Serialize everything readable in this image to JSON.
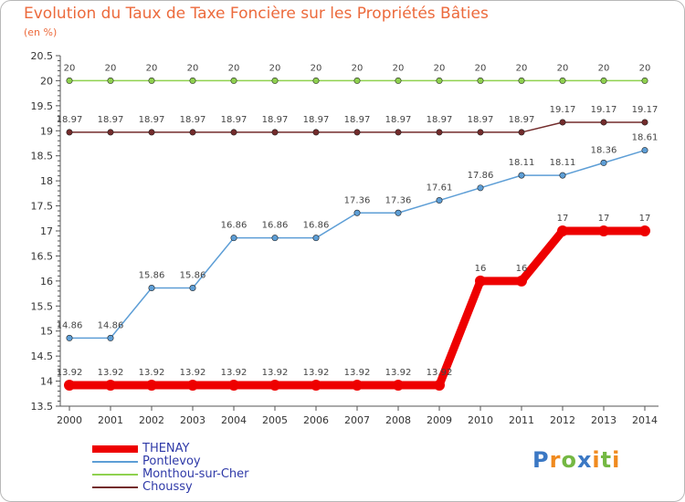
{
  "chart_data": {
    "type": "line",
    "title": "Evolution du Taux de Taxe Foncière sur les Propriétés Bâties",
    "ylabel": "(en %)",
    "xlabel": "",
    "ylim": [
      13.5,
      20.5
    ],
    "grid": false,
    "yticks": [
      "13.5",
      "14",
      "14.5",
      "15",
      "15.5",
      "16",
      "16.5",
      "17",
      "17.5",
      "18",
      "18.5",
      "19",
      "19.5",
      "20",
      "20.5"
    ],
    "categories": [
      "2000",
      "2001",
      "2002",
      "2003",
      "2004",
      "2005",
      "2006",
      "2007",
      "2008",
      "2009",
      "2010",
      "2011",
      "2012",
      "2013",
      "2014"
    ],
    "series": [
      {
        "name": "Monthou-sur-Cher",
        "color": "#8fd14f",
        "emphasis": false,
        "values": [
          20,
          20,
          20,
          20,
          20,
          20,
          20,
          20,
          20,
          20,
          20,
          20,
          20,
          20,
          20
        ],
        "labels": [
          "20",
          "20",
          "20",
          "20",
          "20",
          "20",
          "20",
          "20",
          "20",
          "20",
          "20",
          "20",
          "20",
          "20",
          "20"
        ]
      },
      {
        "name": "Choussy",
        "color": "#732c2c",
        "emphasis": false,
        "values": [
          18.97,
          18.97,
          18.97,
          18.97,
          18.97,
          18.97,
          18.97,
          18.97,
          18.97,
          18.97,
          18.97,
          18.97,
          19.17,
          19.17,
          19.17
        ],
        "labels": [
          "18.97",
          "18.97",
          "18.97",
          "18.97",
          "18.97",
          "18.97",
          "18.97",
          "18.97",
          "18.97",
          "18.97",
          "18.97",
          "18.97",
          "19.17",
          "19.17",
          "19.17"
        ]
      },
      {
        "name": "Pontlevoy",
        "color": "#5d9ed6",
        "emphasis": false,
        "values": [
          14.86,
          14.86,
          15.86,
          15.86,
          16.86,
          16.86,
          16.86,
          17.36,
          17.36,
          17.61,
          17.86,
          18.11,
          18.11,
          18.36,
          18.61
        ],
        "labels": [
          "14.86",
          "14.86",
          "15.86",
          "15.86",
          "16.86",
          "16.86",
          "16.86",
          "17.36",
          "17.36",
          "17.61",
          "17.86",
          "18.11",
          "18.11",
          "18.36",
          "18.61"
        ]
      },
      {
        "name": "THENAY",
        "color": "#ee0000",
        "emphasis": true,
        "values": [
          13.92,
          13.92,
          13.92,
          13.92,
          13.92,
          13.92,
          13.92,
          13.92,
          13.92,
          13.92,
          16,
          16,
          17,
          17,
          17
        ],
        "labels": [
          "13.92",
          "13.92",
          "13.92",
          "13.92",
          "13.92",
          "13.92",
          "13.92",
          "13.92",
          "13.92",
          "13.92",
          "16",
          "16",
          "17",
          "17",
          "17"
        ]
      }
    ],
    "legend": [
      {
        "name": "THENAY",
        "color": "#ee0000",
        "emphasis": true
      },
      {
        "name": "Pontlevoy",
        "color": "#5d9ed6",
        "emphasis": false
      },
      {
        "name": "Monthou-sur-Cher",
        "color": "#8fd14f",
        "emphasis": false
      },
      {
        "name": "Choussy",
        "color": "#732c2c",
        "emphasis": false
      }
    ]
  },
  "brand": {
    "letters": [
      "P",
      "r",
      "o",
      "x",
      "i",
      "t",
      "i"
    ],
    "colors": [
      "#3b78c4",
      "#f08a1e",
      "#74b843",
      "#3b78c4",
      "#f08a1e",
      "#74b843",
      "#f08a1e"
    ]
  }
}
